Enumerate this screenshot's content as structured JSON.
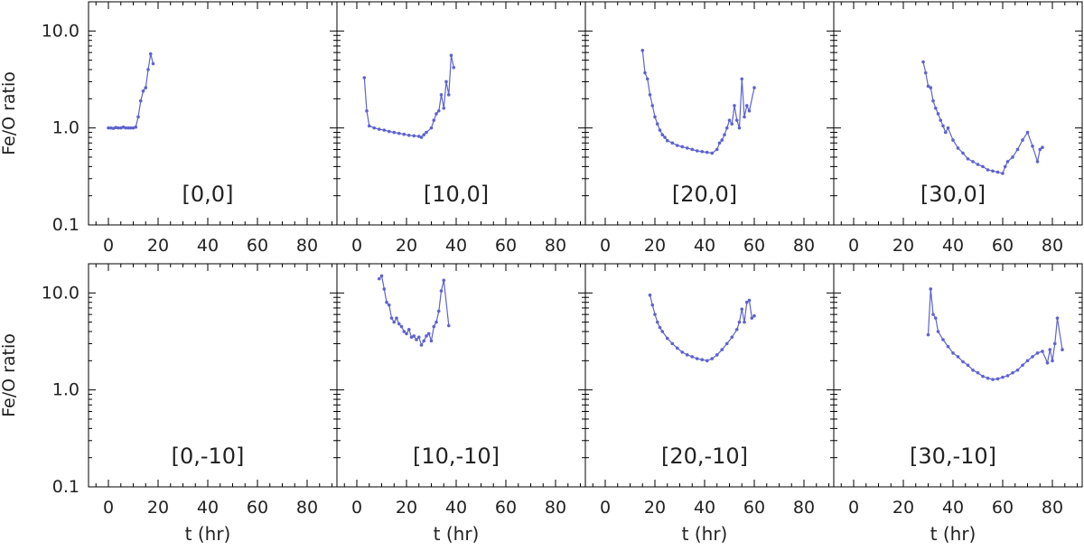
{
  "colors": {
    "series": "#5e62cf",
    "axis": "#000000",
    "text": "#222222"
  },
  "chart_data": {
    "type": "line",
    "layout": "2x4 small multiples",
    "ylabel": "Fe/O ratio",
    "xlabel": "t (hr)",
    "yscale": "log",
    "ylim": [
      0.1,
      20
    ],
    "xlim": [
      -8,
      92
    ],
    "y_tick_labels": [
      "10.0",
      "1.0",
      "0.1"
    ],
    "y_tick_values": [
      10,
      1,
      0.1
    ],
    "x_tick_labels": [
      "0",
      "20",
      "40",
      "60",
      "80"
    ],
    "x_tick_values": [
      0,
      20,
      40,
      60,
      80
    ],
    "panels": [
      {
        "label": "[0,0]",
        "x": [
          0,
          1,
          2,
          3,
          4,
          5,
          6,
          7,
          8,
          9,
          10,
          11,
          12,
          13,
          14,
          15,
          16,
          17,
          18
        ],
        "y": [
          1.0,
          1.0,
          0.99,
          1.01,
          1.0,
          1.0,
          1.02,
          1.0,
          1.0,
          1.0,
          1.0,
          1.02,
          1.3,
          1.9,
          2.4,
          2.6,
          4.0,
          5.8,
          4.6
        ]
      },
      {
        "label": "[10,0]",
        "x": [
          3,
          4,
          5,
          7,
          9,
          11,
          13,
          15,
          17,
          19,
          21,
          23,
          25,
          26,
          27,
          28,
          30,
          31,
          32,
          33,
          34,
          35,
          36,
          37,
          38,
          39
        ],
        "y": [
          3.3,
          1.5,
          1.05,
          1.0,
          0.97,
          0.95,
          0.92,
          0.9,
          0.88,
          0.86,
          0.84,
          0.83,
          0.82,
          0.8,
          0.85,
          0.9,
          1.0,
          1.2,
          1.4,
          1.5,
          2.2,
          1.6,
          3.0,
          2.2,
          5.6,
          4.2
        ]
      },
      {
        "label": "[20,0]",
        "x": [
          15,
          16,
          17,
          18,
          19,
          20,
          21,
          22,
          23,
          24,
          25,
          27,
          29,
          31,
          33,
          35,
          37,
          39,
          41,
          43,
          45,
          46,
          47,
          48,
          49,
          50,
          51,
          52,
          53,
          54,
          55,
          56,
          57,
          58,
          60
        ],
        "y": [
          6.3,
          3.7,
          3.2,
          2.2,
          1.7,
          1.3,
          1.1,
          0.95,
          0.85,
          0.8,
          0.74,
          0.7,
          0.66,
          0.64,
          0.62,
          0.6,
          0.58,
          0.57,
          0.56,
          0.55,
          0.6,
          0.7,
          0.75,
          0.85,
          1.0,
          1.2,
          1.1,
          1.7,
          1.2,
          1.0,
          3.2,
          1.3,
          1.7,
          1.5,
          2.6
        ]
      },
      {
        "label": "[30,0]",
        "x": [
          28,
          29,
          30,
          31,
          32,
          33,
          34,
          35,
          36,
          37,
          38,
          40,
          42,
          44,
          46,
          48,
          50,
          52,
          54,
          56,
          58,
          60,
          61,
          62,
          64,
          66,
          68,
          70,
          72,
          74,
          75,
          76
        ],
        "y": [
          4.8,
          3.7,
          2.7,
          2.6,
          1.9,
          1.6,
          1.4,
          1.2,
          1.05,
          0.9,
          1.0,
          0.75,
          0.62,
          0.55,
          0.48,
          0.45,
          0.42,
          0.4,
          0.37,
          0.36,
          0.35,
          0.34,
          0.4,
          0.45,
          0.5,
          0.6,
          0.75,
          0.9,
          0.65,
          0.45,
          0.6,
          0.63
        ]
      },
      {
        "label": "[0,-10]",
        "x": [],
        "y": []
      },
      {
        "label": "[10,-10]",
        "x": [
          9,
          10,
          11,
          12,
          13,
          14,
          15,
          16,
          17,
          18,
          19,
          20,
          21,
          22,
          23,
          24,
          25,
          26,
          27,
          28,
          29,
          30,
          31,
          32,
          33,
          34,
          35,
          37
        ],
        "y": [
          14,
          15,
          11,
          8,
          7.5,
          5.5,
          5.0,
          5.5,
          4.8,
          4.5,
          4.0,
          3.8,
          4.2,
          3.5,
          3.6,
          3.3,
          3.5,
          2.9,
          3.2,
          3.6,
          3.8,
          3.2,
          4.5,
          5.0,
          6.5,
          10.5,
          13.5,
          4.6
        ]
      },
      {
        "label": "[20,-10]",
        "x": [
          18,
          19,
          20,
          21,
          22,
          23,
          25,
          27,
          29,
          31,
          33,
          35,
          37,
          39,
          41,
          43,
          45,
          47,
          49,
          51,
          53,
          54,
          55,
          56,
          57,
          58,
          59,
          60
        ],
        "y": [
          9.5,
          7.5,
          6.0,
          5.0,
          4.4,
          4.0,
          3.4,
          3.0,
          2.7,
          2.45,
          2.3,
          2.2,
          2.1,
          2.05,
          2.0,
          2.1,
          2.3,
          2.6,
          3.0,
          3.5,
          4.2,
          5.0,
          6.8,
          5.0,
          8.0,
          8.4,
          5.5,
          5.8
        ]
      },
      {
        "label": "[30,-10]",
        "x": [
          30,
          31,
          32,
          33,
          34,
          36,
          38,
          40,
          42,
          44,
          46,
          48,
          50,
          52,
          54,
          56,
          58,
          60,
          62,
          64,
          66,
          68,
          70,
          72,
          74,
          76,
          78,
          79,
          80,
          81,
          82,
          84
        ],
        "y": [
          3.7,
          11,
          6.0,
          5.5,
          4.0,
          3.3,
          2.8,
          2.4,
          2.2,
          1.95,
          1.8,
          1.6,
          1.5,
          1.38,
          1.32,
          1.28,
          1.3,
          1.35,
          1.4,
          1.5,
          1.6,
          1.8,
          2.0,
          2.2,
          2.4,
          2.5,
          1.9,
          2.6,
          2.0,
          3.0,
          5.5,
          2.6
        ]
      }
    ]
  }
}
